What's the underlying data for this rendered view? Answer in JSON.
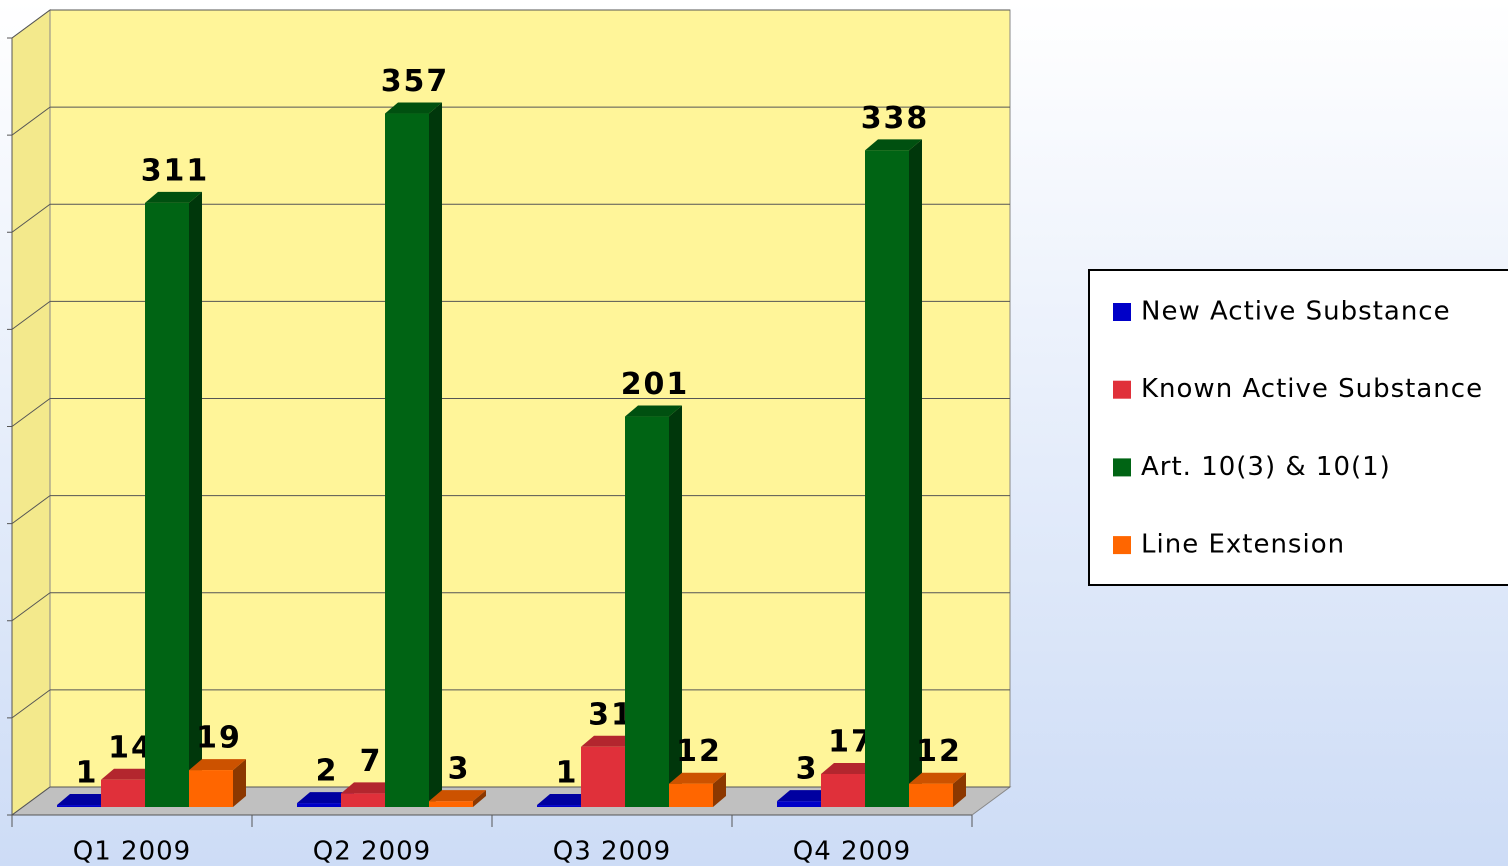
{
  "chart_data": {
    "type": "bar3d",
    "categories": [
      "Q1 2009",
      "Q2 2009",
      "Q3 2009",
      "Q4 2009"
    ],
    "series": [
      {
        "name": "New Active Substance",
        "color": "#0000c8",
        "values": [
          1,
          2,
          1,
          3
        ]
      },
      {
        "name": "Known Active Substance",
        "color": "#e0303a",
        "values": [
          14,
          7,
          31,
          17
        ]
      },
      {
        "name": "Art. 10(3) & 10(1)",
        "color": "#006414",
        "values": [
          311,
          357,
          201,
          338
        ]
      },
      {
        "name": "Line Extension",
        "color": "#ff6600",
        "values": [
          19,
          3,
          12,
          12
        ]
      }
    ],
    "ylim": [
      0,
      400
    ],
    "yticks": [
      0,
      50,
      100,
      150,
      200,
      250,
      300,
      350,
      400
    ],
    "grid": true,
    "legend": "right"
  }
}
